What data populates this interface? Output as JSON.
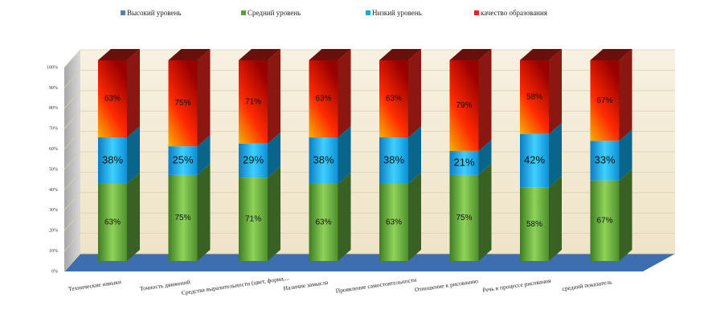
{
  "chart_data": {
    "type": "bar3d_stacked_percent",
    "categories": [
      "Технические навыки",
      "Точность движений",
      "Средства выразительности (цвет, форма,...",
      "Наличие замысла",
      "Проявление самостоятельности",
      "Отношение к рисованию",
      "Речь в процессе рисования",
      "средний показатель"
    ],
    "series": [
      {
        "name": "Высокий уровень",
        "color": "#4f81bd",
        "values": [
          0,
          0,
          0,
          0,
          0,
          0,
          0,
          0
        ]
      },
      {
        "name": "Средний уровень",
        "color": "#5ea13a",
        "values": [
          63,
          75,
          71,
          63,
          63,
          75,
          58,
          67
        ],
        "value_labels": [
          "63%",
          "75%",
          "71%",
          "63%",
          "63%",
          "75%",
          "58%",
          "67%"
        ]
      },
      {
        "name": "Низкий уровень",
        "color": "#10a8e8",
        "values": [
          38,
          25,
          29,
          38,
          38,
          21,
          42,
          33
        ],
        "value_labels": [
          "38%",
          "25%",
          "29%",
          "38%",
          "38%",
          "21%",
          "42%",
          "33%"
        ]
      },
      {
        "name": "качество образования",
        "color": "#e8261a",
        "values": [
          63,
          75,
          71,
          63,
          63,
          79,
          58,
          67
        ],
        "value_labels": [
          "63%",
          "75%",
          "71%",
          "63%",
          "63%",
          "79%",
          "58%",
          "67%"
        ]
      }
    ],
    "ylim": [
      0,
      100
    ],
    "yticks": [
      {
        "value": 0,
        "label": "0%"
      },
      {
        "value": 10,
        "label": "10%"
      },
      {
        "value": 20,
        "label": "20%"
      },
      {
        "value": 30,
        "label": "30%"
      },
      {
        "value": 40,
        "label": "40%"
      },
      {
        "value": 50,
        "label": "50%"
      },
      {
        "value": 60,
        "label": "60%"
      },
      {
        "value": 70,
        "label": "70%"
      },
      {
        "value": 80,
        "label": "80%"
      },
      {
        "value": 90,
        "label": "90%"
      },
      {
        "value": 100,
        "label": "100%"
      }
    ],
    "grid": true,
    "legend": "top"
  }
}
